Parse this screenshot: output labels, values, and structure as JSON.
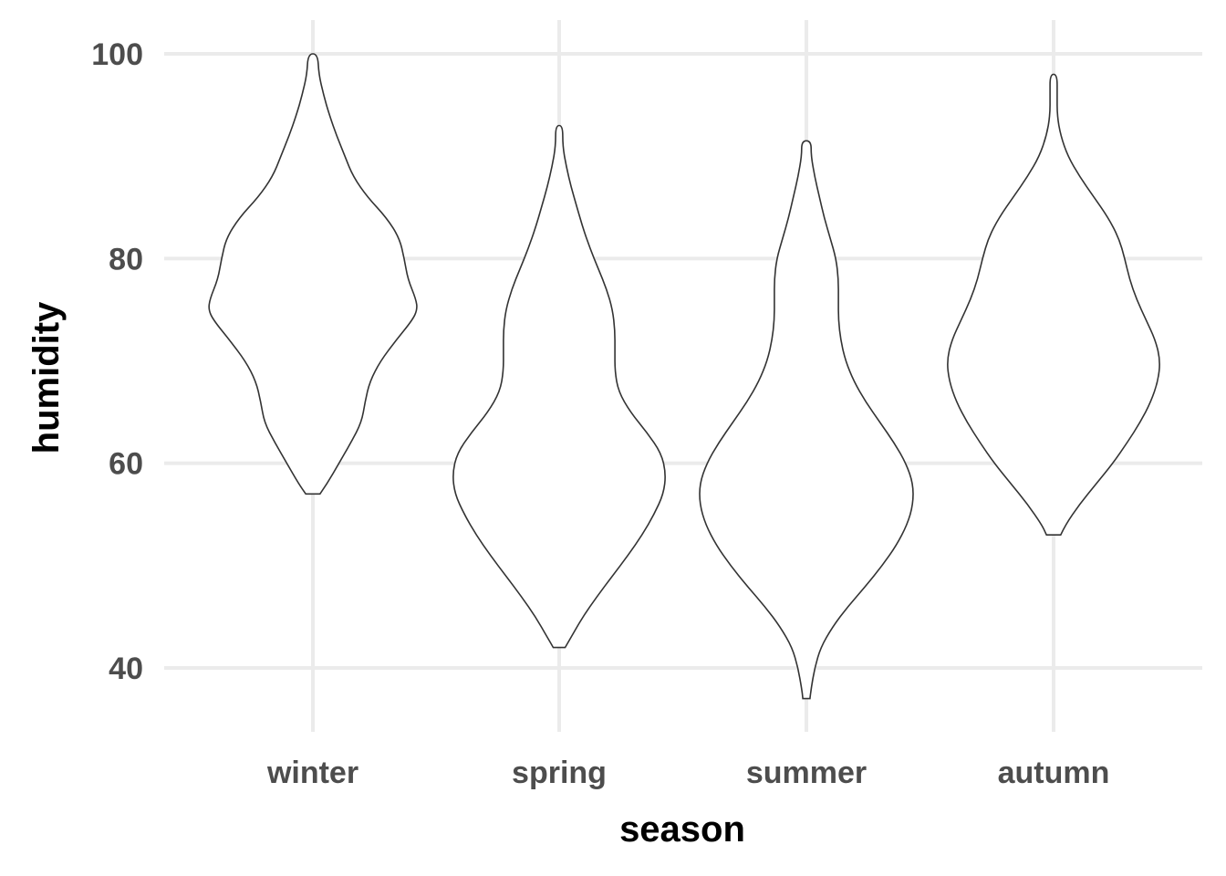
{
  "chart_data": {
    "type": "violin",
    "xlabel": "season",
    "ylabel": "humidity",
    "categories": [
      "winter",
      "spring",
      "summer",
      "autumn"
    ],
    "ylim": [
      34,
      102
    ],
    "yticks": [
      40,
      60,
      80,
      100
    ],
    "grid": true,
    "series": [
      {
        "category": "winter",
        "min": 57,
        "max": 100,
        "profile": [
          {
            "y": 57,
            "w": 0.06
          },
          {
            "y": 58,
            "w": 0.12
          },
          {
            "y": 60,
            "w": 0.22
          },
          {
            "y": 62,
            "w": 0.32
          },
          {
            "y": 64,
            "w": 0.41
          },
          {
            "y": 66,
            "w": 0.44
          },
          {
            "y": 68,
            "w": 0.48
          },
          {
            "y": 70,
            "w": 0.57
          },
          {
            "y": 72,
            "w": 0.7
          },
          {
            "y": 74,
            "w": 0.84
          },
          {
            "y": 75,
            "w": 0.88
          },
          {
            "y": 76,
            "w": 0.87
          },
          {
            "y": 78,
            "w": 0.8
          },
          {
            "y": 80,
            "w": 0.77
          },
          {
            "y": 82,
            "w": 0.73
          },
          {
            "y": 84,
            "w": 0.62
          },
          {
            "y": 86,
            "w": 0.46
          },
          {
            "y": 88,
            "w": 0.34
          },
          {
            "y": 90,
            "w": 0.27
          },
          {
            "y": 92,
            "w": 0.2
          },
          {
            "y": 94,
            "w": 0.14
          },
          {
            "y": 96,
            "w": 0.09
          },
          {
            "y": 98,
            "w": 0.05
          },
          {
            "y": 100,
            "w": 0.04
          }
        ]
      },
      {
        "category": "spring",
        "min": 42,
        "max": 93,
        "profile": [
          {
            "y": 42,
            "w": 0.05
          },
          {
            "y": 43,
            "w": 0.1
          },
          {
            "y": 45,
            "w": 0.2
          },
          {
            "y": 47,
            "w": 0.32
          },
          {
            "y": 49,
            "w": 0.45
          },
          {
            "y": 51,
            "w": 0.58
          },
          {
            "y": 53,
            "w": 0.7
          },
          {
            "y": 55,
            "w": 0.8
          },
          {
            "y": 57,
            "w": 0.88
          },
          {
            "y": 59,
            "w": 0.9
          },
          {
            "y": 61,
            "w": 0.86
          },
          {
            "y": 63,
            "w": 0.74
          },
          {
            "y": 65,
            "w": 0.6
          },
          {
            "y": 67,
            "w": 0.5
          },
          {
            "y": 69,
            "w": 0.47
          },
          {
            "y": 71,
            "w": 0.47
          },
          {
            "y": 73,
            "w": 0.47
          },
          {
            "y": 75,
            "w": 0.45
          },
          {
            "y": 77,
            "w": 0.4
          },
          {
            "y": 79,
            "w": 0.33
          },
          {
            "y": 81,
            "w": 0.26
          },
          {
            "y": 83,
            "w": 0.2
          },
          {
            "y": 85,
            "w": 0.15
          },
          {
            "y": 87,
            "w": 0.1
          },
          {
            "y": 89,
            "w": 0.06
          },
          {
            "y": 91,
            "w": 0.03
          },
          {
            "y": 93,
            "w": 0.03
          }
        ]
      },
      {
        "category": "summer",
        "min": 37,
        "max": 91.5,
        "profile": [
          {
            "y": 37,
            "w": 0.03
          },
          {
            "y": 38,
            "w": 0.04
          },
          {
            "y": 40,
            "w": 0.07
          },
          {
            "y": 42,
            "w": 0.12
          },
          {
            "y": 44,
            "w": 0.22
          },
          {
            "y": 46,
            "w": 0.35
          },
          {
            "y": 48,
            "w": 0.5
          },
          {
            "y": 50,
            "w": 0.64
          },
          {
            "y": 52,
            "w": 0.76
          },
          {
            "y": 54,
            "w": 0.85
          },
          {
            "y": 56,
            "w": 0.9
          },
          {
            "y": 58,
            "w": 0.9
          },
          {
            "y": 60,
            "w": 0.84
          },
          {
            "y": 62,
            "w": 0.74
          },
          {
            "y": 64,
            "w": 0.62
          },
          {
            "y": 66,
            "w": 0.5
          },
          {
            "y": 68,
            "w": 0.4
          },
          {
            "y": 70,
            "w": 0.33
          },
          {
            "y": 72,
            "w": 0.29
          },
          {
            "y": 74,
            "w": 0.27
          },
          {
            "y": 76,
            "w": 0.27
          },
          {
            "y": 78,
            "w": 0.27
          },
          {
            "y": 80,
            "w": 0.25
          },
          {
            "y": 82,
            "w": 0.2
          },
          {
            "y": 84,
            "w": 0.15
          },
          {
            "y": 86,
            "w": 0.11
          },
          {
            "y": 88,
            "w": 0.07
          },
          {
            "y": 90,
            "w": 0.04
          },
          {
            "y": 91.5,
            "w": 0.04
          }
        ]
      },
      {
        "category": "autumn",
        "min": 53,
        "max": 98,
        "profile": [
          {
            "y": 53,
            "w": 0.06
          },
          {
            "y": 54,
            "w": 0.1
          },
          {
            "y": 56,
            "w": 0.22
          },
          {
            "y": 58,
            "w": 0.36
          },
          {
            "y": 60,
            "w": 0.5
          },
          {
            "y": 62,
            "w": 0.62
          },
          {
            "y": 64,
            "w": 0.73
          },
          {
            "y": 66,
            "w": 0.82
          },
          {
            "y": 68,
            "w": 0.88
          },
          {
            "y": 70,
            "w": 0.9
          },
          {
            "y": 72,
            "w": 0.86
          },
          {
            "y": 74,
            "w": 0.78
          },
          {
            "y": 76,
            "w": 0.7
          },
          {
            "y": 78,
            "w": 0.64
          },
          {
            "y": 80,
            "w": 0.6
          },
          {
            "y": 82,
            "w": 0.55
          },
          {
            "y": 84,
            "w": 0.46
          },
          {
            "y": 86,
            "w": 0.34
          },
          {
            "y": 88,
            "w": 0.22
          },
          {
            "y": 90,
            "w": 0.12
          },
          {
            "y": 92,
            "w": 0.06
          },
          {
            "y": 94,
            "w": 0.03
          },
          {
            "y": 96,
            "w": 0.03
          },
          {
            "y": 98,
            "w": 0.03
          }
        ]
      }
    ]
  }
}
